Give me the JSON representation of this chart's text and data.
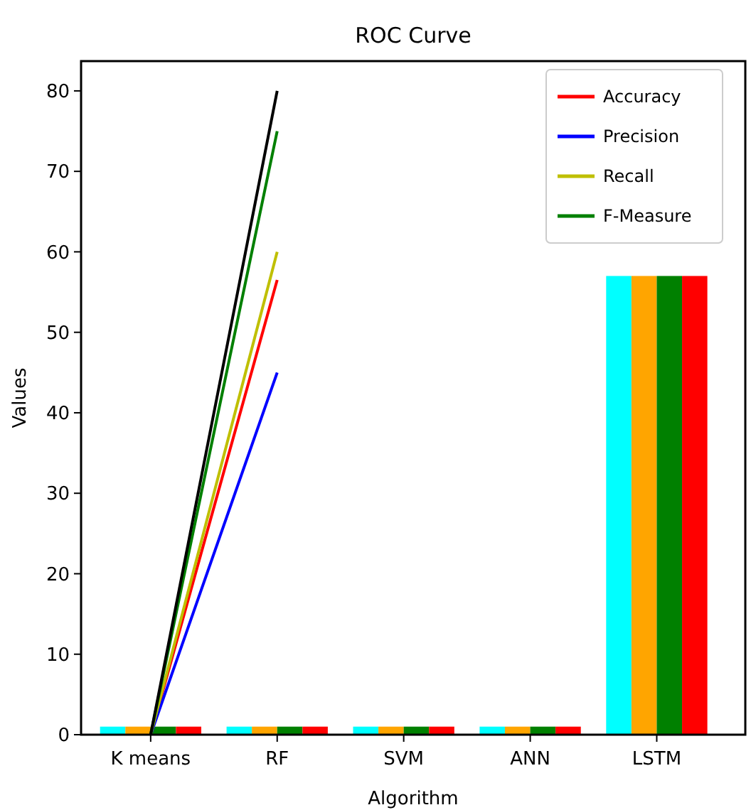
{
  "chart_data": {
    "type": "bar",
    "title": "ROC Curve",
    "xlabel": "Algorithm",
    "ylabel": "Values",
    "categories": [
      "K means",
      "RF",
      "SVM",
      "ANN",
      "LSTM"
    ],
    "ylim": [
      0,
      83.7
    ],
    "yticks": [
      0,
      10,
      20,
      30,
      40,
      50,
      60,
      70,
      80
    ],
    "grid": false,
    "legend": "top right",
    "series": [
      {
        "color": "#00ffff",
        "values": [
          1,
          1,
          1,
          1,
          57
        ]
      },
      {
        "color": "#ffa500",
        "values": [
          1,
          1,
          1,
          1,
          57
        ]
      },
      {
        "color": "#008000",
        "values": [
          1,
          1,
          1,
          1,
          57
        ]
      },
      {
        "color": "#ff0000",
        "values": [
          1,
          1,
          1,
          1,
          57
        ]
      },
      {
        "type": "line",
        "name": "Accuracy",
        "color": "#ff0000",
        "values": [
          0,
          56.5,
          null,
          null,
          null
        ]
      },
      {
        "type": "line",
        "name": "Precision",
        "color": "#0000ff",
        "values": [
          0,
          45,
          null,
          null,
          null
        ]
      },
      {
        "type": "line",
        "name": "Recall",
        "color": "#bfbf00",
        "values": [
          0,
          60,
          null,
          null,
          null
        ]
      },
      {
        "type": "line",
        "name": "F-Measure",
        "color": "#008000",
        "values": [
          0,
          75,
          null,
          null,
          null
        ]
      },
      {
        "type": "line",
        "color": "#000000",
        "values": [
          0,
          80,
          null,
          null,
          null
        ]
      }
    ]
  }
}
